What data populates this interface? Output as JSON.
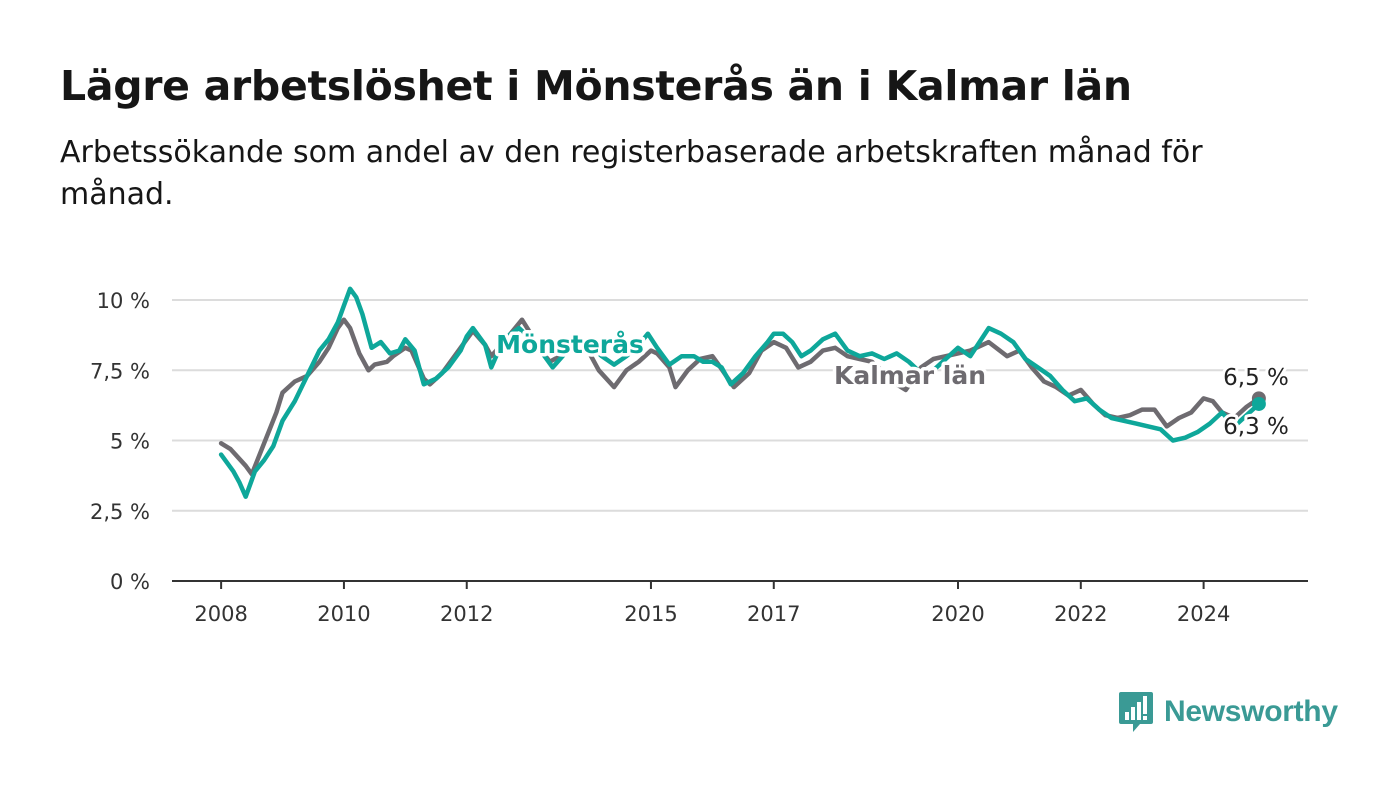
{
  "header": {
    "title": "Lägre arbetslöshet i Mönsterås än i Kalmar län",
    "subtitle": "Arbetssökande som andel av den registerbaserade arbetskraften månad för månad."
  },
  "brand": {
    "name": "Newsworthy",
    "icon": "newsworthy-logo-icon",
    "color": "#3a9a95"
  },
  "chart_data": {
    "type": "line",
    "x_unit": "year",
    "xlim": [
      2007.2,
      2025.7
    ],
    "ylim": [
      0,
      10
    ],
    "y_ticks": [
      0,
      2.5,
      5,
      7.5,
      10
    ],
    "y_tick_labels": [
      "0 %",
      "2,5 %",
      "5 %",
      "7,5 %",
      "10 %"
    ],
    "x_ticks": [
      2008,
      2010,
      2012,
      2015,
      2017,
      2020,
      2022,
      2024
    ],
    "x_tick_labels": [
      "2008",
      "2010",
      "2012",
      "2015",
      "2017",
      "2020",
      "2022",
      "2024"
    ],
    "grid": true,
    "legend": "inline labels",
    "series": [
      {
        "name": "Kalmar län",
        "color": "#6e6b70",
        "end_value_label": "6,5 %",
        "x": [
          2008.0,
          2008.15,
          2008.4,
          2008.5,
          2008.7,
          2008.9,
          2009.0,
          2009.2,
          2009.4,
          2009.6,
          2009.75,
          2009.9,
          2010.0,
          2010.1,
          2010.25,
          2010.4,
          2010.5,
          2010.7,
          2010.8,
          2011.0,
          2011.1,
          2011.3,
          2011.4,
          2011.6,
          2011.8,
          2012.0,
          2012.1,
          2012.3,
          2012.4,
          2012.6,
          2012.9,
          2013.1,
          2013.35,
          2013.6,
          2013.8,
          2014.0,
          2014.15,
          2014.4,
          2014.6,
          2014.8,
          2015.0,
          2015.1,
          2015.3,
          2015.4,
          2015.6,
          2015.8,
          2016.0,
          2016.1,
          2016.35,
          2016.6,
          2016.8,
          2017.0,
          2017.2,
          2017.4,
          2017.6,
          2017.8,
          2018.0,
          2018.2,
          2018.4,
          2018.6,
          2018.8,
          2019.0,
          2019.15,
          2019.4,
          2019.6,
          2019.8,
          2020.0,
          2020.2,
          2020.5,
          2020.8,
          2021.0,
          2021.2,
          2021.4,
          2021.6,
          2021.8,
          2022.0,
          2022.2,
          2022.4,
          2022.6,
          2022.8,
          2023.0,
          2023.2,
          2023.4,
          2023.6,
          2023.8,
          2024.0,
          2024.15,
          2024.3,
          2024.5,
          2024.7,
          2024.9
        ],
        "values": [
          4.9,
          4.7,
          4.1,
          3.8,
          4.9,
          6.0,
          6.7,
          7.1,
          7.3,
          7.8,
          8.3,
          9.0,
          9.3,
          9.0,
          8.1,
          7.5,
          7.7,
          7.8,
          8.0,
          8.3,
          8.2,
          7.2,
          7.0,
          7.4,
          8.0,
          8.6,
          8.9,
          8.4,
          8.0,
          8.5,
          9.3,
          8.6,
          7.8,
          8.1,
          8.3,
          8.1,
          7.5,
          6.9,
          7.5,
          7.8,
          8.2,
          8.1,
          7.6,
          6.9,
          7.5,
          7.9,
          8.0,
          7.7,
          6.9,
          7.4,
          8.2,
          8.5,
          8.3,
          7.6,
          7.8,
          8.2,
          8.3,
          8.0,
          7.9,
          7.8,
          7.4,
          7.0,
          6.8,
          7.6,
          7.9,
          8.0,
          8.1,
          8.2,
          8.5,
          8.0,
          8.2,
          7.6,
          7.1,
          6.9,
          6.6,
          6.8,
          6.3,
          5.9,
          5.8,
          5.9,
          6.1,
          6.1,
          5.5,
          5.8,
          6.0,
          6.5,
          6.4,
          6.0,
          5.8,
          6.2,
          6.5
        ]
      },
      {
        "name": "Mönsterås",
        "color": "#0ea79a",
        "end_value_label": "6,3 %",
        "x": [
          2008.0,
          2008.2,
          2008.3,
          2008.4,
          2008.55,
          2008.7,
          2008.85,
          2009.0,
          2009.2,
          2009.4,
          2009.6,
          2009.75,
          2009.9,
          2010.0,
          2010.1,
          2010.2,
          2010.3,
          2010.45,
          2010.6,
          2010.75,
          2010.9,
          2011.0,
          2011.15,
          2011.3,
          2011.5,
          2011.7,
          2011.9,
          2012.0,
          2012.1,
          2012.3,
          2012.4,
          2012.6,
          2012.85,
          2013.1,
          2013.4,
          2013.6,
          2013.8,
          2014.0,
          2014.2,
          2014.4,
          2014.6,
          2014.8,
          2014.95,
          2015.1,
          2015.3,
          2015.5,
          2015.7,
          2015.85,
          2016.0,
          2016.15,
          2016.3,
          2016.5,
          2016.7,
          2016.9,
          2017.0,
          2017.15,
          2017.3,
          2017.45,
          2017.6,
          2017.8,
          2018.0,
          2018.2,
          2018.4,
          2018.6,
          2018.8,
          2019.0,
          2019.2,
          2019.4,
          2019.6,
          2019.8,
          2020.0,
          2020.2,
          2020.35,
          2020.5,
          2020.7,
          2020.9,
          2021.1,
          2021.3,
          2021.5,
          2021.7,
          2021.9,
          2022.1,
          2022.3,
          2022.5,
          2022.7,
          2022.9,
          2023.1,
          2023.3,
          2023.5,
          2023.7,
          2023.9,
          2024.1,
          2024.3,
          2024.5,
          2024.7,
          2024.9
        ],
        "values": [
          4.5,
          3.9,
          3.5,
          3.0,
          3.9,
          4.3,
          4.8,
          5.7,
          6.4,
          7.3,
          8.2,
          8.6,
          9.2,
          9.8,
          10.4,
          10.1,
          9.5,
          8.3,
          8.5,
          8.1,
          8.2,
          8.6,
          8.2,
          7.0,
          7.2,
          7.6,
          8.2,
          8.7,
          9.0,
          8.4,
          7.6,
          8.6,
          9.0,
          8.5,
          7.6,
          8.1,
          8.6,
          8.4,
          8.0,
          7.7,
          8.0,
          8.4,
          8.8,
          8.3,
          7.7,
          8.0,
          8.0,
          7.8,
          7.8,
          7.6,
          7.0,
          7.4,
          8.0,
          8.5,
          8.8,
          8.8,
          8.5,
          8.0,
          8.2,
          8.6,
          8.8,
          8.2,
          8.0,
          8.1,
          7.9,
          8.1,
          7.8,
          7.4,
          7.5,
          7.9,
          8.3,
          8.0,
          8.5,
          9.0,
          8.8,
          8.5,
          7.9,
          7.6,
          7.3,
          6.8,
          6.4,
          6.5,
          6.1,
          5.8,
          5.7,
          5.6,
          5.5,
          5.4,
          5.0,
          5.1,
          5.3,
          5.6,
          6.0,
          5.5,
          5.9,
          6.3
        ]
      }
    ]
  }
}
